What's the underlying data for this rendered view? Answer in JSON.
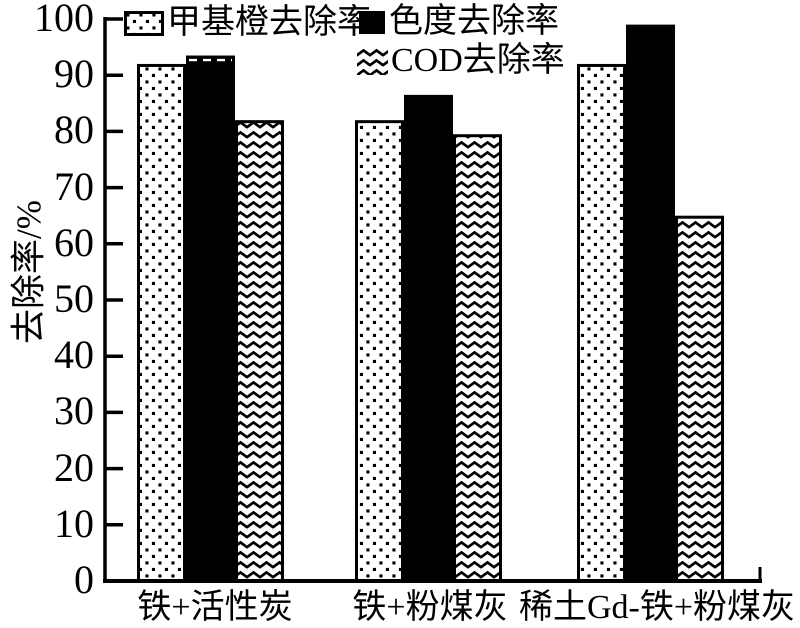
{
  "figure": {
    "background": "#ffffff",
    "ink": "#000000"
  },
  "chart_data": {
    "type": "bar",
    "title": "",
    "xlabel": "",
    "ylabel": "去除率/%",
    "ylim": [
      0,
      100
    ],
    "ytick_step": 10,
    "yticks": [
      0,
      10,
      20,
      30,
      40,
      50,
      60,
      70,
      80,
      90,
      100
    ],
    "grid": false,
    "legend_position": "top-left-inside",
    "categories": [
      "铁+活性炭",
      "铁+粉煤灰",
      "稀土Gd-铁+粉煤灰"
    ],
    "series": [
      {
        "name": "甲基橙去除率",
        "pattern": "dots",
        "values": [
          92,
          82,
          92
        ]
      },
      {
        "name": "色度去除率",
        "pattern": "solid",
        "values": [
          93.5,
          86.5,
          99
        ]
      },
      {
        "name": "COD去除率",
        "pattern": "zigzag",
        "values": [
          82,
          79.5,
          65
        ]
      }
    ],
    "annotations": [
      {
        "type": "white-dashed-cap",
        "category_index": 0,
        "series_index": 1
      }
    ]
  }
}
